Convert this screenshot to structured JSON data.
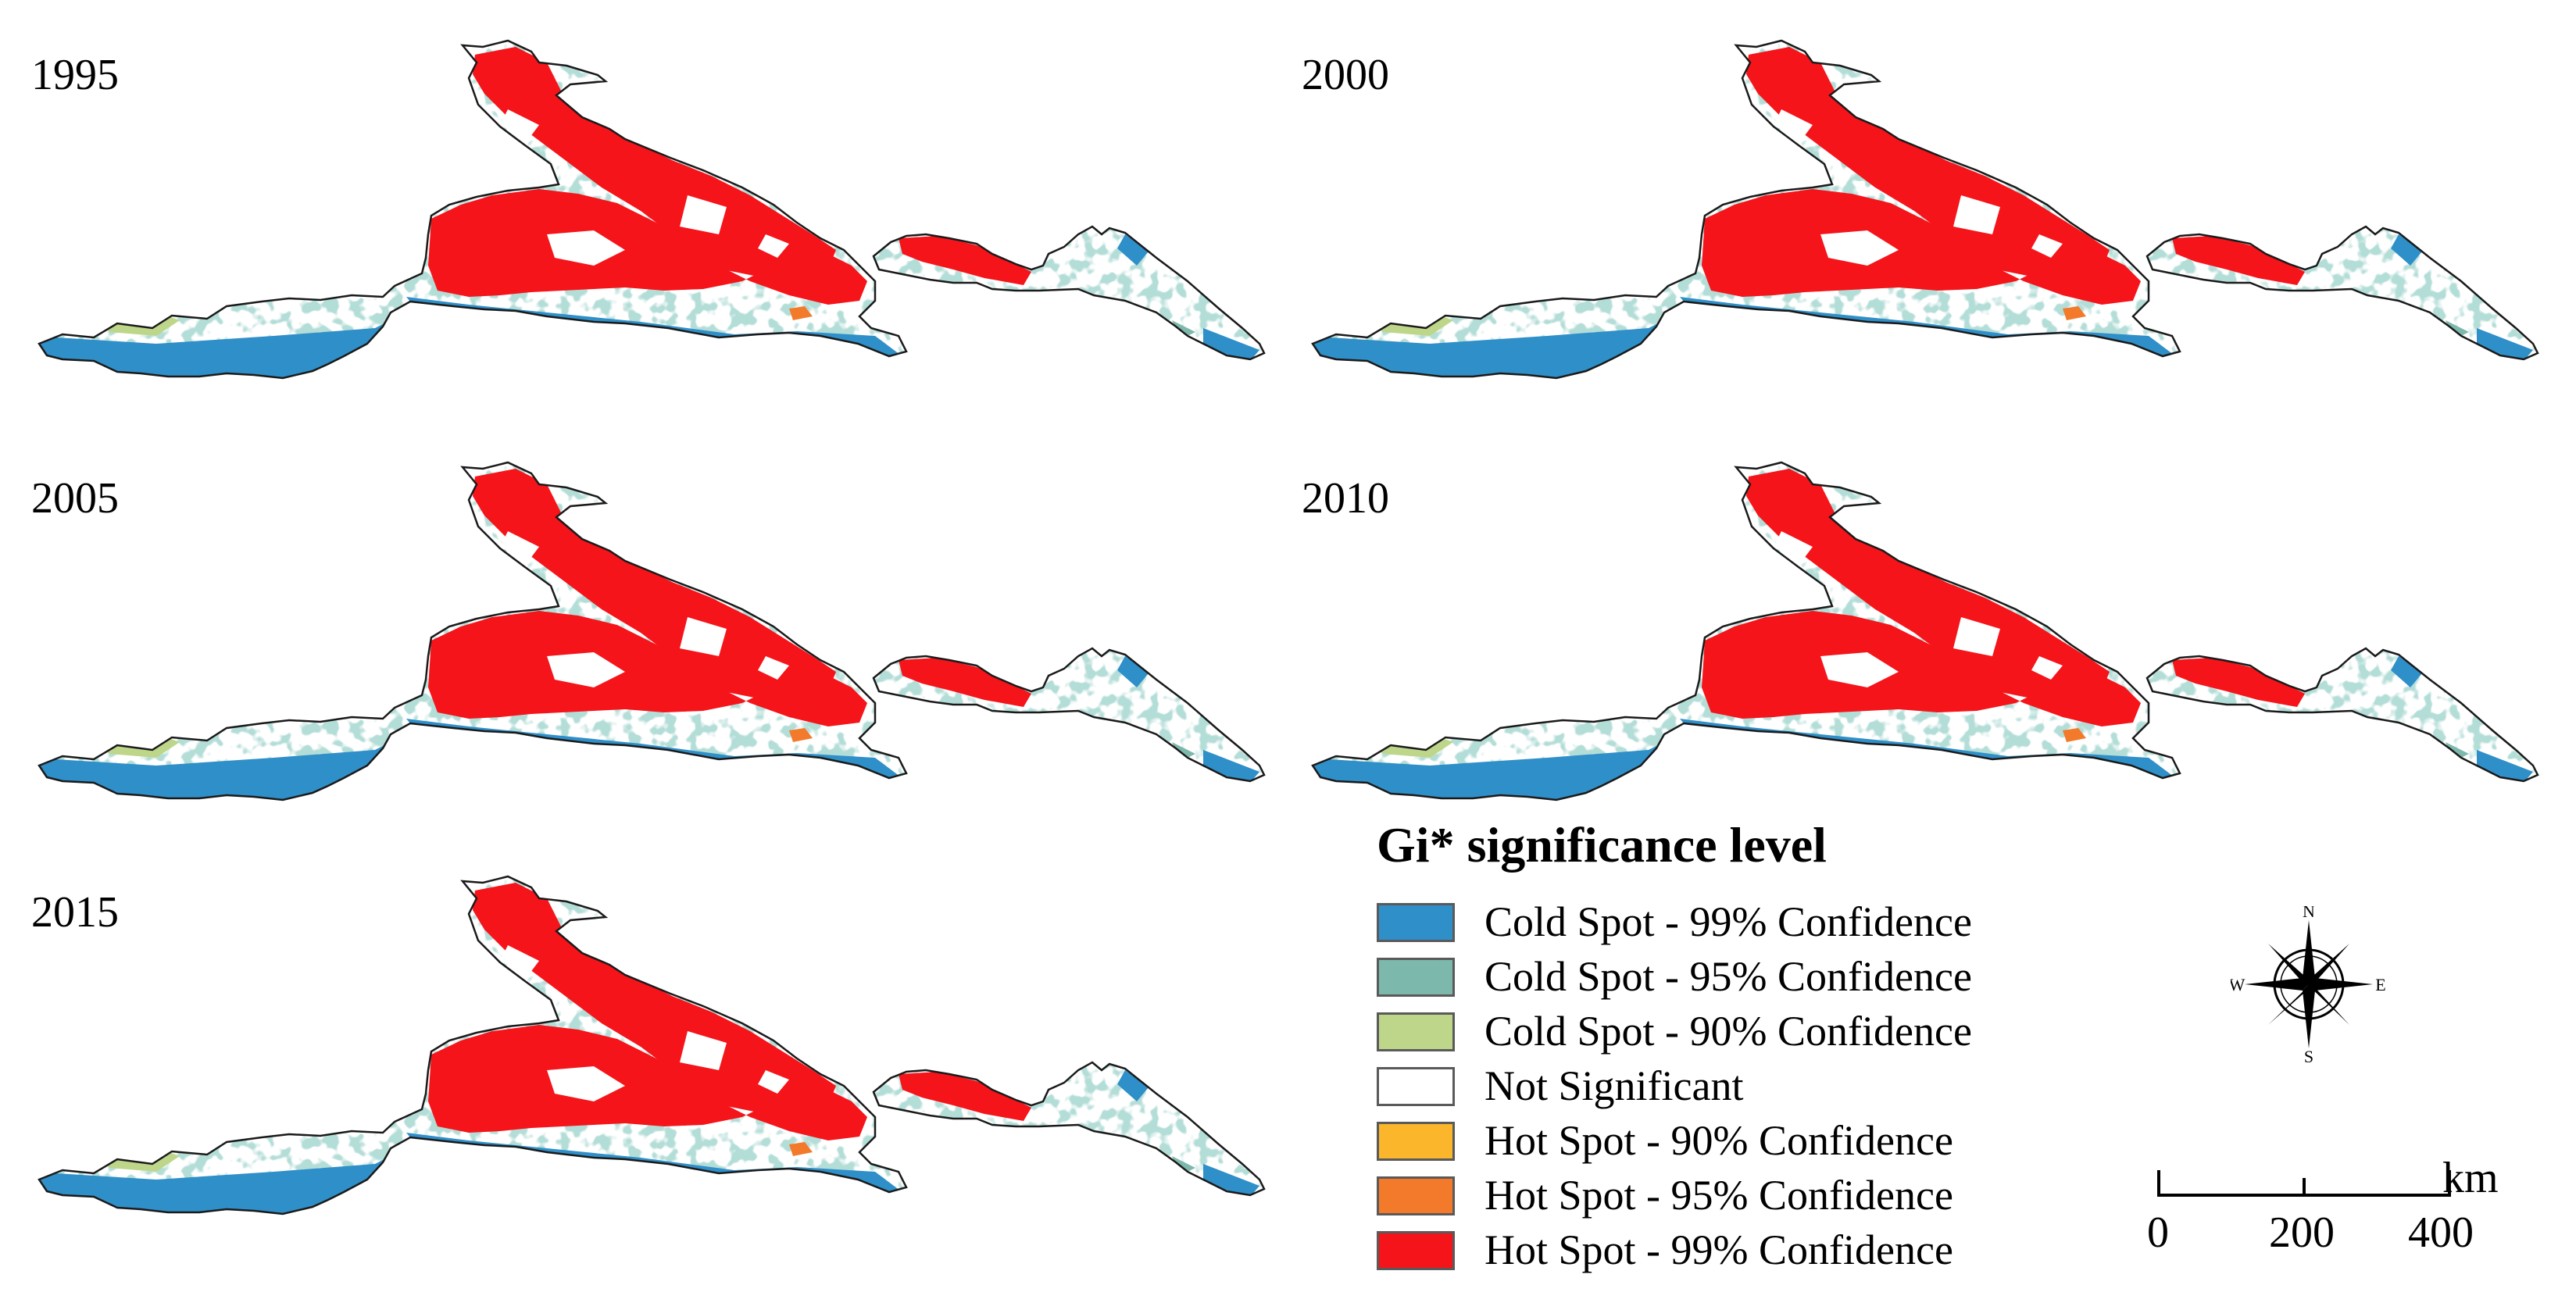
{
  "panels": [
    {
      "year": "1995"
    },
    {
      "year": "2000"
    },
    {
      "year": "2005"
    },
    {
      "year": "2010"
    },
    {
      "year": "2015"
    }
  ],
  "legend": {
    "title": "Gi*  significance level",
    "items": [
      {
        "label": "Cold Spot - 99% Confidence",
        "color": "#2f8fc8"
      },
      {
        "label": "Cold Spot - 95% Confidence",
        "color": "#7db8ad"
      },
      {
        "label": "Cold Spot - 90% Confidence",
        "color": "#bdd68a"
      },
      {
        "label": "Not Significant",
        "color": "#ffffff"
      },
      {
        "label": "Hot Spot - 90% Confidence",
        "color": "#fbb62c"
      },
      {
        "label": "Hot Spot - 95% Confidence",
        "color": "#f27a2a"
      },
      {
        "label": "Hot Spot - 99% Confidence",
        "color": "#f5141a"
      }
    ]
  },
  "compass": {
    "n": "N",
    "s": "S",
    "e": "E",
    "w": "W"
  },
  "scale": {
    "ticks": [
      "0",
      "200",
      "400"
    ],
    "unit": "km"
  }
}
